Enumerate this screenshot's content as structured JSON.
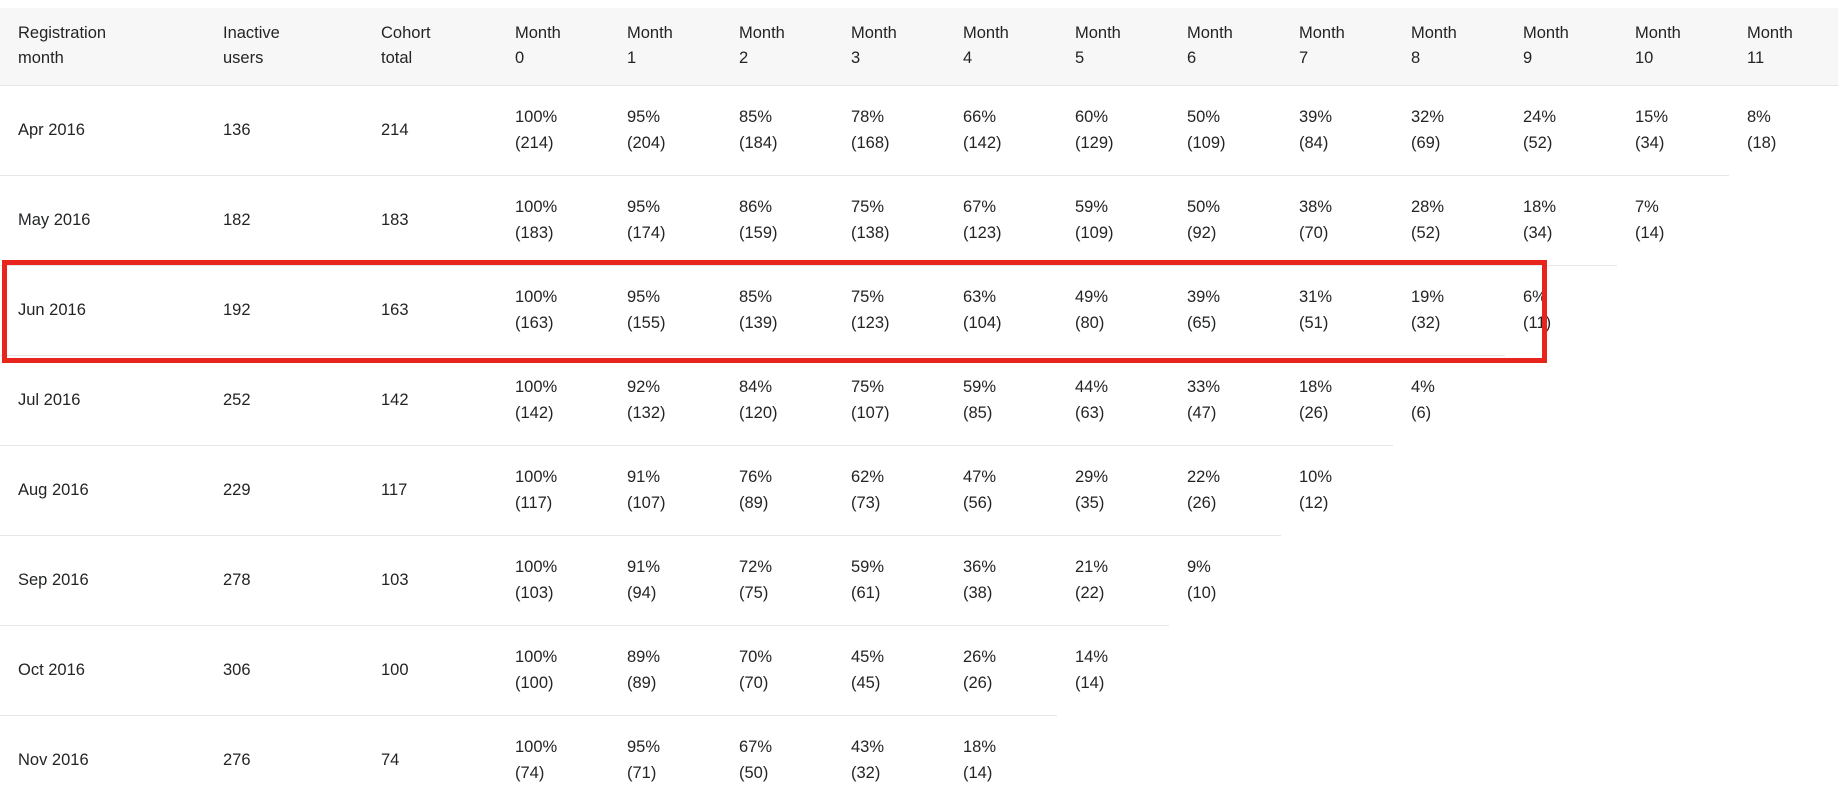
{
  "colors": {
    "highlight_border": "#e8251d",
    "header_bg": "#f7f7f7",
    "divider": "#e7e7e7",
    "text": "#222426"
  },
  "chart_data": {
    "type": "table",
    "columns": [
      "Registration month",
      "Inactive users",
      "Cohort total",
      "Month 0",
      "Month 1",
      "Month 2",
      "Month 3",
      "Month 4",
      "Month 5",
      "Month 6",
      "Month 7",
      "Month 8",
      "Month 9",
      "Month 10",
      "Month 11"
    ],
    "highlighted_row": "Jun 2016",
    "rows": [
      {
        "registration_month": "Apr 2016",
        "inactive_users": 136,
        "cohort_total": 214,
        "months": [
          {
            "pct": 100,
            "n": 214
          },
          {
            "pct": 95,
            "n": 204
          },
          {
            "pct": 85,
            "n": 184
          },
          {
            "pct": 78,
            "n": 168
          },
          {
            "pct": 66,
            "n": 142
          },
          {
            "pct": 60,
            "n": 129
          },
          {
            "pct": 50,
            "n": 109
          },
          {
            "pct": 39,
            "n": 84
          },
          {
            "pct": 32,
            "n": 69
          },
          {
            "pct": 24,
            "n": 52
          },
          {
            "pct": 15,
            "n": 34
          },
          {
            "pct": 8,
            "n": 18
          }
        ]
      },
      {
        "registration_month": "May 2016",
        "inactive_users": 182,
        "cohort_total": 183,
        "months": [
          {
            "pct": 100,
            "n": 183
          },
          {
            "pct": 95,
            "n": 174
          },
          {
            "pct": 86,
            "n": 159
          },
          {
            "pct": 75,
            "n": 138
          },
          {
            "pct": 67,
            "n": 123
          },
          {
            "pct": 59,
            "n": 109
          },
          {
            "pct": 50,
            "n": 92
          },
          {
            "pct": 38,
            "n": 70
          },
          {
            "pct": 28,
            "n": 52
          },
          {
            "pct": 18,
            "n": 34
          },
          {
            "pct": 7,
            "n": 14
          }
        ]
      },
      {
        "registration_month": "Jun 2016",
        "inactive_users": 192,
        "cohort_total": 163,
        "months": [
          {
            "pct": 100,
            "n": 163
          },
          {
            "pct": 95,
            "n": 155
          },
          {
            "pct": 85,
            "n": 139
          },
          {
            "pct": 75,
            "n": 123
          },
          {
            "pct": 63,
            "n": 104
          },
          {
            "pct": 49,
            "n": 80
          },
          {
            "pct": 39,
            "n": 65
          },
          {
            "pct": 31,
            "n": 51
          },
          {
            "pct": 19,
            "n": 32
          },
          {
            "pct": 6,
            "n": 11
          }
        ]
      },
      {
        "registration_month": "Jul 2016",
        "inactive_users": 252,
        "cohort_total": 142,
        "months": [
          {
            "pct": 100,
            "n": 142
          },
          {
            "pct": 92,
            "n": 132
          },
          {
            "pct": 84,
            "n": 120
          },
          {
            "pct": 75,
            "n": 107
          },
          {
            "pct": 59,
            "n": 85
          },
          {
            "pct": 44,
            "n": 63
          },
          {
            "pct": 33,
            "n": 47
          },
          {
            "pct": 18,
            "n": 26
          },
          {
            "pct": 4,
            "n": 6
          }
        ]
      },
      {
        "registration_month": "Aug 2016",
        "inactive_users": 229,
        "cohort_total": 117,
        "months": [
          {
            "pct": 100,
            "n": 117
          },
          {
            "pct": 91,
            "n": 107
          },
          {
            "pct": 76,
            "n": 89
          },
          {
            "pct": 62,
            "n": 73
          },
          {
            "pct": 47,
            "n": 56
          },
          {
            "pct": 29,
            "n": 35
          },
          {
            "pct": 22,
            "n": 26
          },
          {
            "pct": 10,
            "n": 12
          }
        ]
      },
      {
        "registration_month": "Sep 2016",
        "inactive_users": 278,
        "cohort_total": 103,
        "months": [
          {
            "pct": 100,
            "n": 103
          },
          {
            "pct": 91,
            "n": 94
          },
          {
            "pct": 72,
            "n": 75
          },
          {
            "pct": 59,
            "n": 61
          },
          {
            "pct": 36,
            "n": 38
          },
          {
            "pct": 21,
            "n": 22
          },
          {
            "pct": 9,
            "n": 10
          }
        ]
      },
      {
        "registration_month": "Oct 2016",
        "inactive_users": 306,
        "cohort_total": 100,
        "months": [
          {
            "pct": 100,
            "n": 100
          },
          {
            "pct": 89,
            "n": 89
          },
          {
            "pct": 70,
            "n": 70
          },
          {
            "pct": 45,
            "n": 45
          },
          {
            "pct": 26,
            "n": 26
          },
          {
            "pct": 14,
            "n": 14
          }
        ]
      },
      {
        "registration_month": "Nov 2016",
        "inactive_users": 276,
        "cohort_total": 74,
        "months": [
          {
            "pct": 100,
            "n": 74
          },
          {
            "pct": 95,
            "n": 71
          },
          {
            "pct": 67,
            "n": 50
          },
          {
            "pct": 43,
            "n": 32
          },
          {
            "pct": 18,
            "n": 14
          }
        ]
      }
    ]
  }
}
